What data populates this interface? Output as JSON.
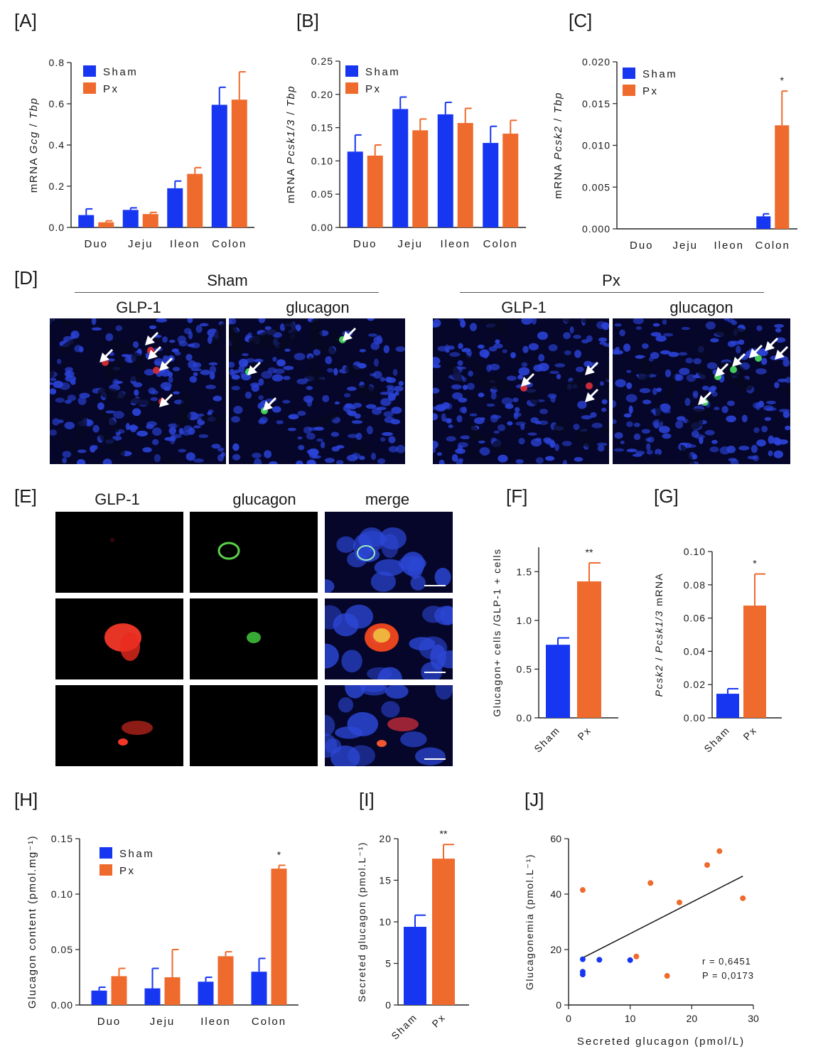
{
  "panels": {
    "A": "[A]",
    "B": "[B]",
    "C": "[C]",
    "D": "[D]",
    "E": "[E]",
    "F": "[F]",
    "G": "[G]",
    "H": "[H]",
    "I": "[I]",
    "J": "[J]"
  },
  "colors": {
    "sham": "#1736f2",
    "px": "#ef6a2d"
  },
  "imaging": {
    "D": {
      "group_left": "Sham",
      "group_right": "Px",
      "col1": "GLP-1",
      "col2": "glucagon"
    },
    "E": {
      "col1": "GLP-1",
      "col2": "glucagon",
      "col3": "merge"
    }
  },
  "chart_data": [
    {
      "id": "A",
      "type": "bar",
      "categories": [
        "Duo",
        "Jeju",
        "Ileon",
        "Colon"
      ],
      "series": [
        {
          "name": "Sham",
          "values": [
            0.06,
            0.085,
            0.19,
            0.595
          ],
          "errors": [
            0.03,
            0.01,
            0.035,
            0.085
          ]
        },
        {
          "name": "Px",
          "values": [
            0.025,
            0.065,
            0.26,
            0.62
          ],
          "errors": [
            0.007,
            0.008,
            0.03,
            0.135
          ]
        }
      ],
      "ylabel": "mRNA Gcg / Tbp",
      "ylim": [
        0,
        0.8
      ],
      "yticks": [
        "0.0",
        "0.2",
        "0.4",
        "0.6",
        "0.8"
      ],
      "legend": "top-left"
    },
    {
      "id": "B",
      "type": "bar",
      "categories": [
        "Duo",
        "Jeju",
        "Ileon",
        "Colon"
      ],
      "series": [
        {
          "name": "Sham",
          "values": [
            0.114,
            0.178,
            0.17,
            0.127
          ],
          "errors": [
            0.025,
            0.018,
            0.018,
            0.025
          ]
        },
        {
          "name": "Px",
          "values": [
            0.108,
            0.146,
            0.157,
            0.141
          ],
          "errors": [
            0.016,
            0.017,
            0.022,
            0.02
          ]
        }
      ],
      "ylabel": "mRNA Pcsk1/3 / Tbp",
      "ylim": [
        0,
        0.25
      ],
      "yticks": [
        "0.00",
        "0.05",
        "0.10",
        "0.15",
        "0.20",
        "0.25"
      ],
      "legend": "top-left"
    },
    {
      "id": "C",
      "type": "bar",
      "categories": [
        "Duo",
        "Jeju",
        "Ileon",
        "Colon"
      ],
      "series": [
        {
          "name": "Sham",
          "values": [
            0,
            0,
            0,
            0.0015
          ],
          "errors": [
            0,
            0,
            0,
            0.0003
          ]
        },
        {
          "name": "Px",
          "values": [
            0,
            0,
            0,
            0.0124
          ],
          "errors": [
            0,
            0,
            0,
            0.0041
          ]
        }
      ],
      "ylabel": "mRNA Pcsk2 / Tbp",
      "ylim": [
        0,
        0.02
      ],
      "yticks": [
        "0.000",
        "0.005",
        "0.010",
        "0.015",
        "0.020"
      ],
      "annotations": [
        {
          "category": "Colon",
          "text": "*"
        }
      ],
      "legend": "top-left"
    },
    {
      "id": "F",
      "type": "bar",
      "categories": [
        "Sham",
        "Px"
      ],
      "values": [
        0.75,
        1.4
      ],
      "errors": [
        0.07,
        0.19
      ],
      "ylabel": "Glucagon+ cells /GLP-1 + cells",
      "ylim": [
        0,
        1.75
      ],
      "yticks": [
        "0.0",
        "0.5",
        "1.0",
        "1.5"
      ],
      "annotations": [
        {
          "category": "Px",
          "text": "**"
        }
      ]
    },
    {
      "id": "G",
      "type": "bar",
      "categories": [
        "Sham",
        "Px"
      ],
      "values": [
        0.0145,
        0.0675
      ],
      "errors": [
        0.003,
        0.019
      ],
      "ylabel": "Pcsk2 / Pcsk1/3 mRNA",
      "ylim": [
        0,
        0.1
      ],
      "yticks": [
        "0.00",
        "0.02",
        "0.04",
        "0.06",
        "0.08",
        "0.10"
      ],
      "annotations": [
        {
          "category": "Px",
          "text": "*"
        }
      ]
    },
    {
      "id": "H",
      "type": "bar",
      "categories": [
        "Duo",
        "Jeju",
        "Ileon",
        "Colon"
      ],
      "series": [
        {
          "name": "Sham",
          "values": [
            0.013,
            0.015,
            0.021,
            0.03
          ],
          "errors": [
            0.003,
            0.018,
            0.004,
            0.012
          ]
        },
        {
          "name": "Px",
          "values": [
            0.026,
            0.025,
            0.044,
            0.123
          ],
          "errors": [
            0.007,
            0.025,
            0.004,
            0.003
          ]
        }
      ],
      "ylabel": "Glucagon content (pmol.mg⁻¹)",
      "ylim": [
        0,
        0.15
      ],
      "yticks": [
        "0.00",
        "0.05",
        "0.10",
        "0.15"
      ],
      "annotations": [
        {
          "category": "Colon",
          "text": "*"
        }
      ],
      "legend": "top-left"
    },
    {
      "id": "I",
      "type": "bar",
      "categories": [
        "Sham",
        "Px"
      ],
      "values": [
        9.4,
        17.6
      ],
      "errors": [
        1.4,
        1.7
      ],
      "ylabel": "Secreted glucagon (pmol.L⁻¹)",
      "ylim": [
        0,
        20
      ],
      "yticks": [
        "0",
        "5",
        "10",
        "15",
        "20"
      ],
      "annotations": [
        {
          "category": "Px",
          "text": "**"
        }
      ]
    },
    {
      "id": "J",
      "type": "scatter",
      "series": [
        {
          "name": "Sham",
          "points": [
            [
              2.3,
              16.5
            ],
            [
              2.3,
              12
            ],
            [
              2.3,
              11
            ],
            [
              5,
              16.3
            ],
            [
              10,
              16.2
            ]
          ]
        },
        {
          "name": "Px",
          "points": [
            [
              2.3,
              41.5
            ],
            [
              11,
              17.5
            ],
            [
              13.3,
              44
            ],
            [
              16,
              10.5
            ],
            [
              18,
              37
            ],
            [
              22.5,
              50.5
            ],
            [
              24.5,
              55.5
            ],
            [
              28.3,
              38.5
            ]
          ]
        }
      ],
      "fit_line": [
        [
          2.3,
          17
        ],
        [
          28.3,
          46.5
        ]
      ],
      "xlabel": "Secreted glucagon (pmol/L)",
      "ylabel": "Glucagonemia (pmol.L⁻¹)",
      "xlim": [
        0,
        30
      ],
      "ylim": [
        0,
        60
      ],
      "xticks": [
        "0",
        "10",
        "20",
        "30"
      ],
      "yticks": [
        "0",
        "20",
        "40",
        "60"
      ],
      "stats": [
        "r = 0,6451",
        "P = 0,0173"
      ]
    }
  ]
}
